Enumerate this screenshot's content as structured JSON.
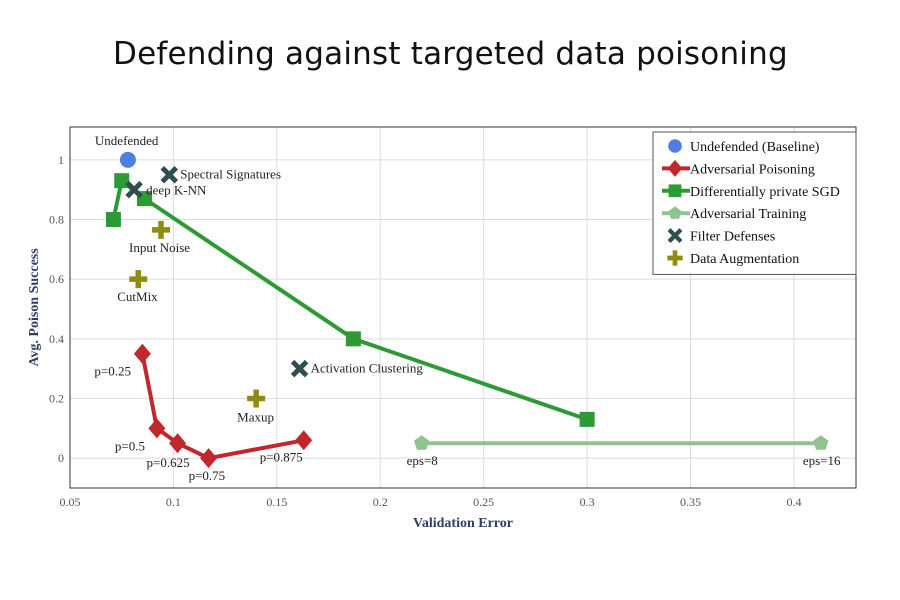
{
  "slide": {
    "title": "Defending against targeted data poisoning"
  },
  "chart_data": {
    "type": "scatter",
    "xlabel": "Validation Error",
    "ylabel": "Avg. Poison Success",
    "xlim": [
      0.05,
      0.43
    ],
    "ylim": [
      -0.1,
      1.11
    ],
    "xticks": [
      0.05,
      0.1,
      0.15,
      0.2,
      0.25,
      0.3,
      0.35,
      0.4
    ],
    "xtick_labels": [
      "0.05",
      "0.1",
      "0.15",
      "0.2",
      "0.25",
      "0.3",
      "0.35",
      "0.4"
    ],
    "yticks": [
      0,
      0.2,
      0.4,
      0.6,
      0.8,
      1
    ],
    "ytick_labels": [
      "0",
      "0.2",
      "0.4",
      "0.6",
      "0.8",
      "1"
    ],
    "grid": true,
    "legend_position": "top-right",
    "series": [
      {
        "name": "Undefended (Baseline)",
        "marker": "circle",
        "color": "#4f7ee0",
        "line": false,
        "points": [
          {
            "x": 0.078,
            "y": 1.0,
            "label": "Undefended"
          }
        ]
      },
      {
        "name": "Adversarial Poisoning",
        "marker": "diamond",
        "color": "#c0282d",
        "line": true,
        "points": [
          {
            "x": 0.085,
            "y": 0.35,
            "label": "p=0.25"
          },
          {
            "x": 0.092,
            "y": 0.1,
            "label": "p=0.5"
          },
          {
            "x": 0.102,
            "y": 0.05,
            "label": "p=0.625"
          },
          {
            "x": 0.117,
            "y": 0.0,
            "label": "p=0.75"
          },
          {
            "x": 0.163,
            "y": 0.06,
            "label": "p=0.875"
          }
        ]
      },
      {
        "name": "Differentially private SGD",
        "marker": "square",
        "color": "#2e9a35",
        "line": true,
        "points": [
          {
            "x": 0.071,
            "y": 0.8,
            "label": ""
          },
          {
            "x": 0.075,
            "y": 0.93,
            "label": ""
          },
          {
            "x": 0.086,
            "y": 0.87,
            "label": ""
          },
          {
            "x": 0.187,
            "y": 0.4,
            "label": ""
          },
          {
            "x": 0.3,
            "y": 0.13,
            "label": ""
          }
        ]
      },
      {
        "name": "Adversarial Training",
        "marker": "pentagon",
        "color": "#90c48e",
        "line": true,
        "points": [
          {
            "x": 0.22,
            "y": 0.05,
            "label": "eps=8"
          },
          {
            "x": 0.413,
            "y": 0.05,
            "label": "eps=16"
          }
        ]
      },
      {
        "name": "Filter Defenses",
        "marker": "x",
        "color": "#2f4f4f",
        "line": false,
        "points": [
          {
            "x": 0.081,
            "y": 0.9,
            "label": "deep K-NN"
          },
          {
            "x": 0.098,
            "y": 0.95,
            "label": "Spectral Signatures"
          },
          {
            "x": 0.161,
            "y": 0.3,
            "label": "Activation Clustering"
          }
        ]
      },
      {
        "name": "Data Augmentation",
        "marker": "plus",
        "color": "#8f8a10",
        "line": false,
        "points": [
          {
            "x": 0.094,
            "y": 0.765,
            "label": "Input Noise"
          },
          {
            "x": 0.083,
            "y": 0.6,
            "label": "CutMix"
          },
          {
            "x": 0.14,
            "y": 0.2,
            "label": "Maxup"
          }
        ]
      }
    ]
  }
}
